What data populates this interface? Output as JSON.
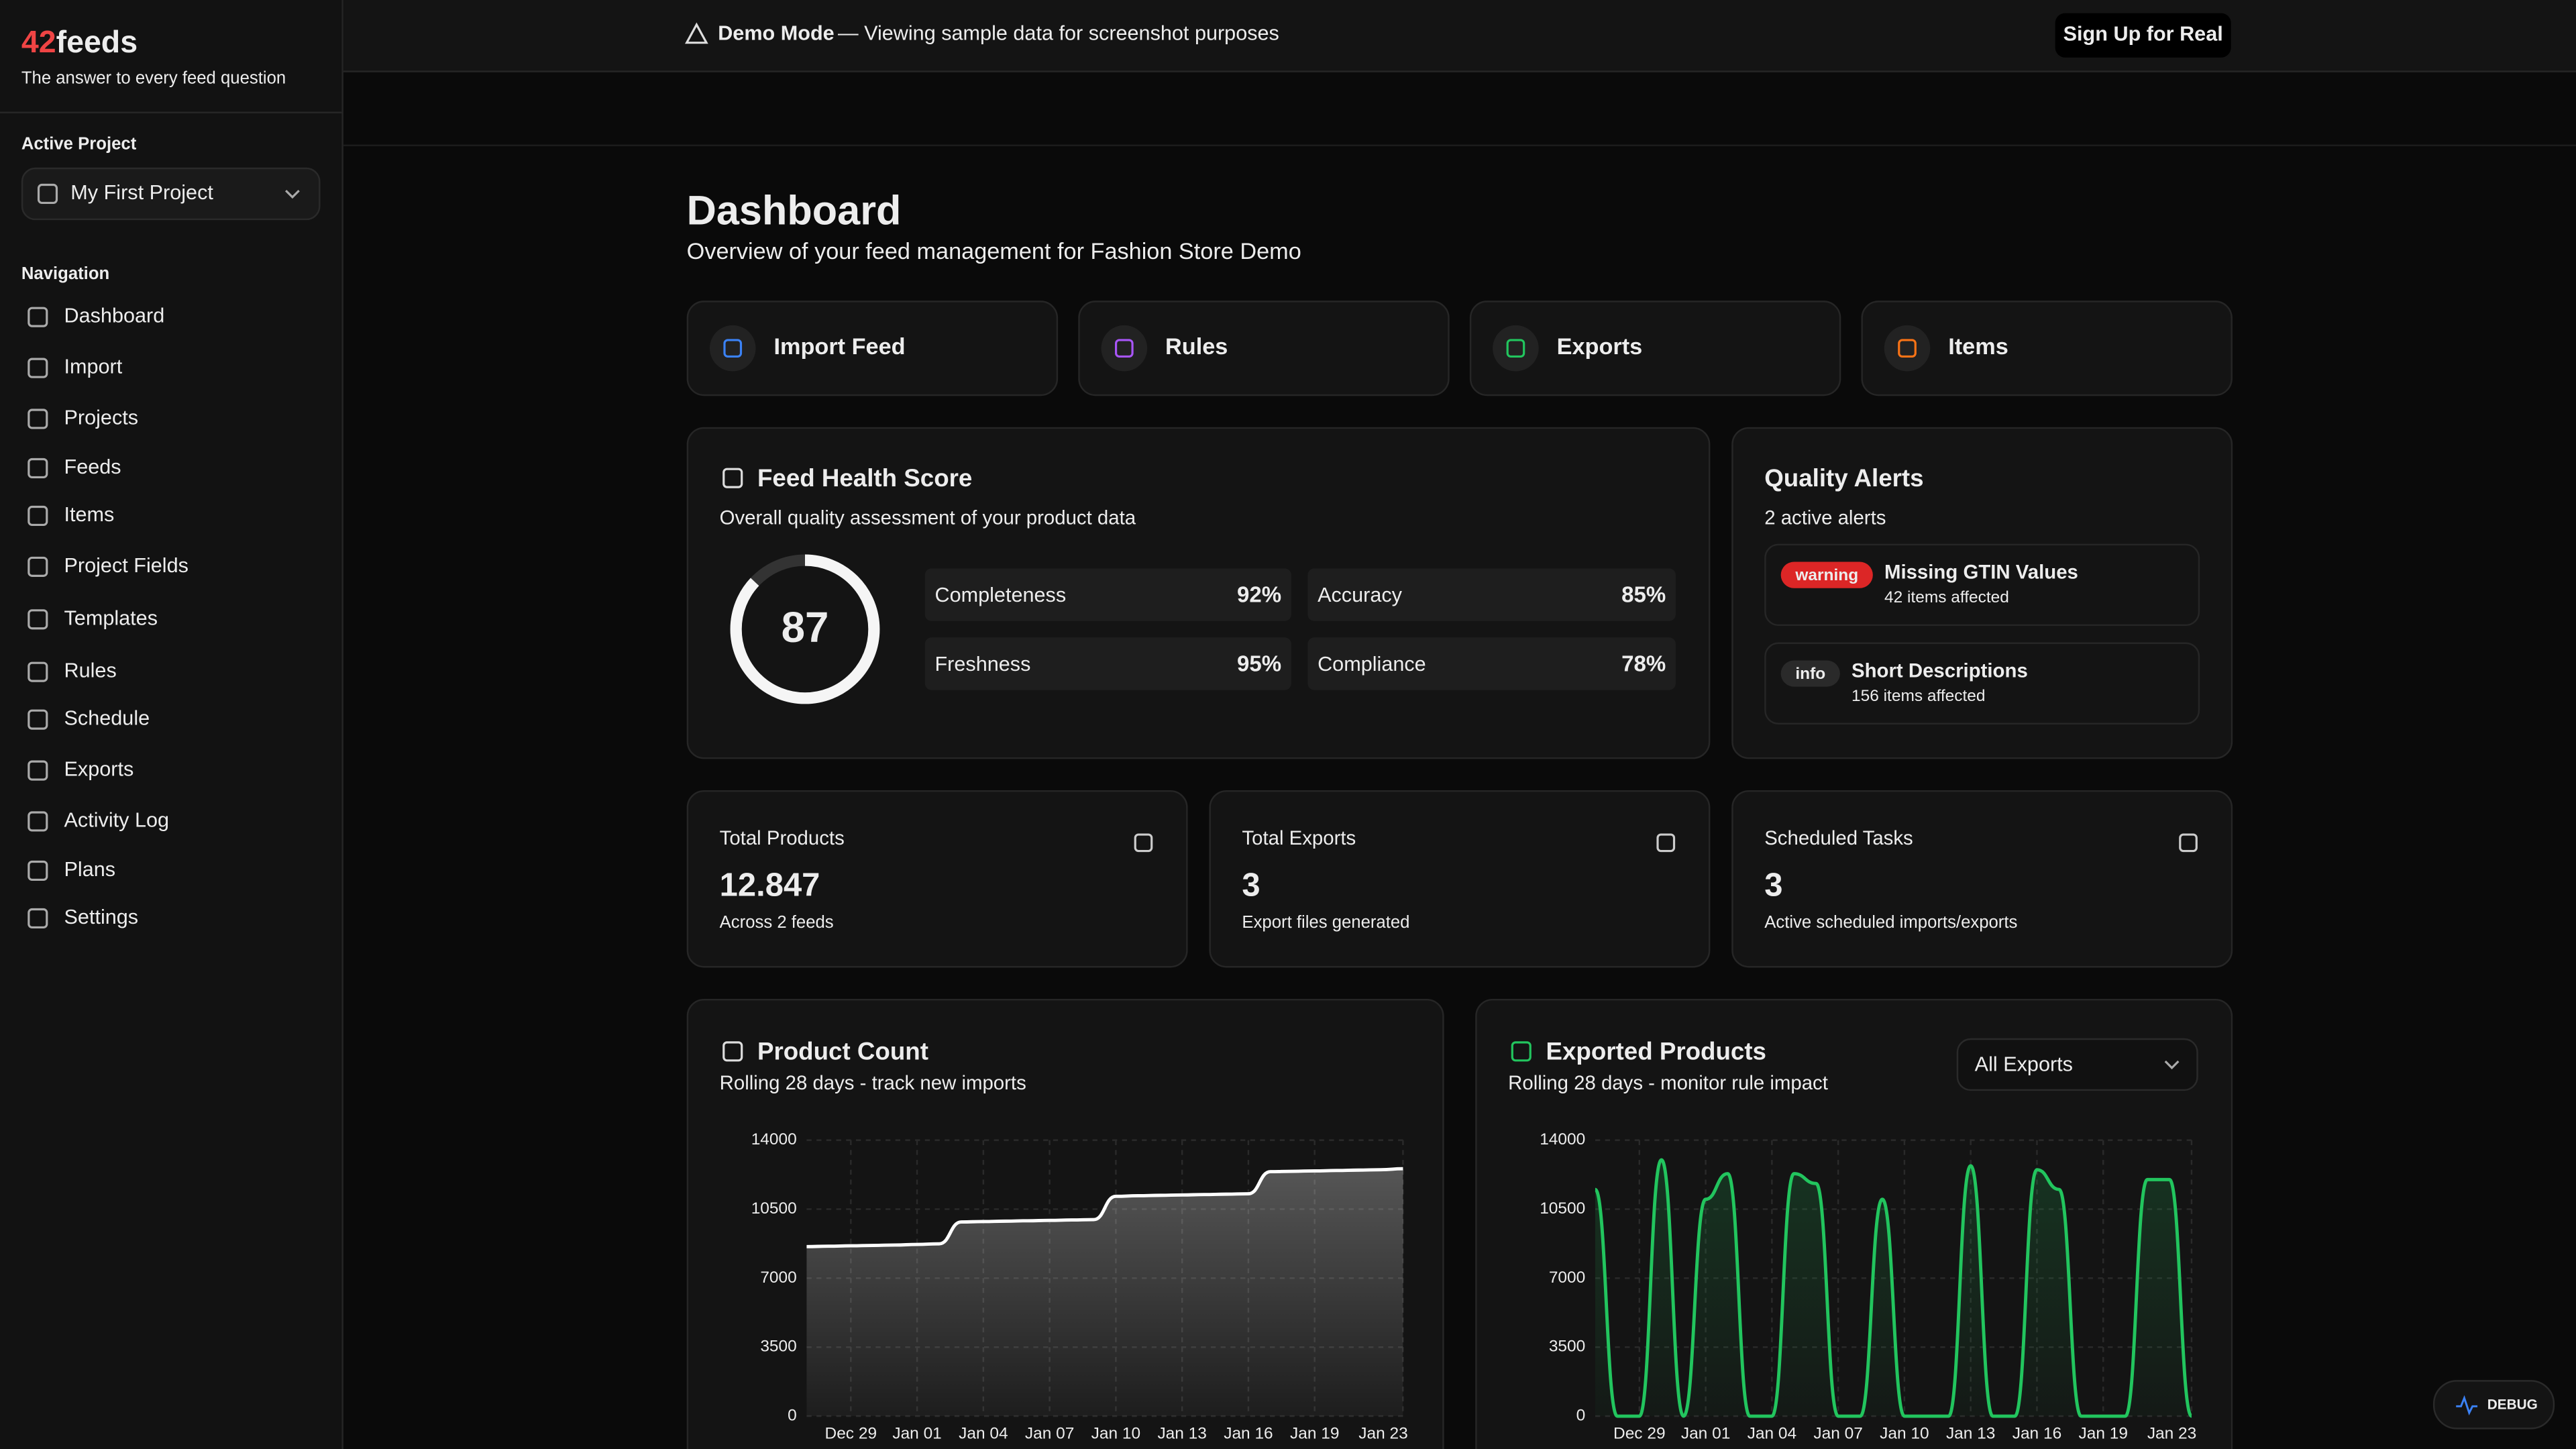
{
  "brand": {
    "accent": "42",
    "name": "feeds",
    "tagline": "The answer to every feed question"
  },
  "sidebar": {
    "project_label": "Active Project",
    "project": "My First Project",
    "nav_label": "Navigation",
    "nav": [
      "Dashboard",
      "Import",
      "Projects",
      "Feeds",
      "Items",
      "Project Fields",
      "Templates",
      "Rules",
      "Schedule",
      "Exports",
      "Activity Log",
      "Plans",
      "Settings"
    ]
  },
  "banner": {
    "mode": "Demo Mode",
    "message": "— Viewing sample data for screenshot purposes",
    "button": "Sign Up for Real"
  },
  "page": {
    "title": "Dashboard",
    "subtitle": "Overview of your feed management for Fashion Store Demo"
  },
  "quick_actions": [
    "Import Feed",
    "Rules",
    "Exports",
    "Items"
  ],
  "health": {
    "title": "Feed Health Score",
    "subtitle": "Overall quality assessment of your product data",
    "score": 87,
    "metrics": [
      {
        "name": "Completeness",
        "value": "92%"
      },
      {
        "name": "Accuracy",
        "value": "85%"
      },
      {
        "name": "Freshness",
        "value": "95%"
      },
      {
        "name": "Compliance",
        "value": "78%"
      }
    ]
  },
  "alerts": {
    "title": "Quality Alerts",
    "subtitle": "2 active alerts",
    "items": [
      {
        "badge": "warning",
        "title": "Missing GTIN Values",
        "detail": "42 items affected"
      },
      {
        "badge": "info",
        "title": "Short Descriptions",
        "detail": "156 items affected"
      }
    ]
  },
  "stats": [
    {
      "label": "Total Products",
      "value": "12.847",
      "detail": "Across 2 feeds"
    },
    {
      "label": "Total Exports",
      "value": "3",
      "detail": "Export files generated"
    },
    {
      "label": "Scheduled Tasks",
      "value": "3",
      "detail": "Active scheduled imports/exports"
    }
  ],
  "debug": "DEBUG",
  "chart_data": [
    {
      "type": "area",
      "title": "Product Count",
      "subtitle": "Rolling 28 days - track new imports",
      "color": "#ffffff",
      "categories": [
        null,
        null,
        "Dec 29",
        null,
        null,
        "Jan 01",
        null,
        null,
        "Jan 04",
        null,
        null,
        "Jan 07",
        null,
        null,
        "Jan 10",
        null,
        null,
        "Jan 13",
        null,
        null,
        "Jan 16",
        null,
        null,
        "Jan 19",
        null,
        null,
        null,
        "Jan 23"
      ],
      "values": [
        8600,
        8620,
        8640,
        8660,
        8680,
        8710,
        8740,
        9850,
        9870,
        9890,
        9910,
        9930,
        9950,
        9970,
        11150,
        11180,
        11200,
        11220,
        11240,
        11260,
        11280,
        12400,
        12420,
        12440,
        12460,
        12480,
        12500,
        12550
      ],
      "ylim": [
        0,
        14000
      ],
      "yticks": [
        0,
        3500,
        7000,
        10500,
        14000
      ],
      "grid": true
    },
    {
      "type": "area",
      "title": "Exported Products",
      "subtitle": "Rolling 28 days - monitor rule impact",
      "filter": "All Exports",
      "color": "#22c55e",
      "categories": [
        null,
        null,
        "Dec 29",
        null,
        null,
        "Jan 01",
        null,
        null,
        "Jan 04",
        null,
        null,
        "Jan 07",
        null,
        null,
        "Jan 10",
        null,
        null,
        "Jan 13",
        null,
        null,
        "Jan 16",
        null,
        null,
        "Jan 19",
        null,
        null,
        null,
        "Jan 23"
      ],
      "values": [
        11500,
        0,
        0,
        13000,
        0,
        11000,
        12300,
        0,
        0,
        12300,
        11800,
        0,
        0,
        11000,
        0,
        0,
        0,
        12700,
        0,
        0,
        12500,
        11500,
        0,
        0,
        0,
        12000,
        12000,
        0
      ],
      "ylim": [
        0,
        14000
      ],
      "yticks": [
        0,
        3500,
        7000,
        10500,
        14000
      ],
      "grid": true
    }
  ]
}
